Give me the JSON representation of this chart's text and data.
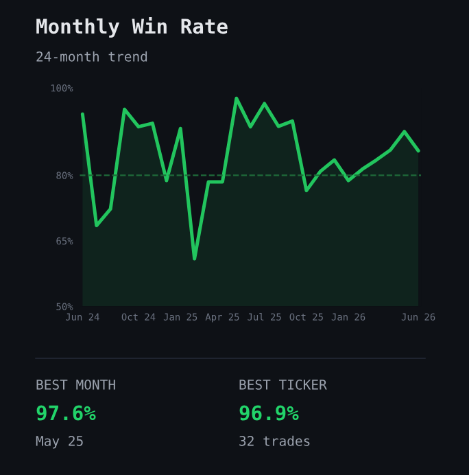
{
  "chart_data": {
    "type": "area",
    "title": "Monthly Win Rate",
    "subtitle": "24-month trend",
    "categories": [
      "Jun 24",
      null,
      null,
      null,
      "Oct 24",
      null,
      null,
      "Jan 25",
      null,
      null,
      "Apr 25",
      null,
      null,
      "Jul 25",
      null,
      null,
      "Oct 25",
      null,
      null,
      "Jan 26",
      null,
      null,
      null,
      null,
      "Jun 26"
    ],
    "series": [
      {
        "color": "#22c55e",
        "values": [
          94.0,
          68.5,
          72.3,
          95.1,
          91.1,
          91.9,
          78.8,
          90.7,
          60.9,
          78.5,
          78.5,
          97.6,
          91.1,
          96.4,
          91.2,
          92.4,
          76.5,
          80.9,
          83.5,
          78.8,
          81.4,
          83.5,
          85.8,
          90.0,
          85.6
        ]
      }
    ],
    "ylim": [
      50,
      100
    ],
    "yticks": [
      {
        "value": 50,
        "label": "50%"
      },
      {
        "value": 65,
        "label": "65%"
      },
      {
        "value": 80,
        "label": "80%"
      },
      {
        "value": 100,
        "label": "100%"
      }
    ],
    "ref_lines": [
      {
        "axis": "y",
        "value": 80,
        "color": "#1f6b3a",
        "line_style": "dashed"
      }
    ],
    "grid": false,
    "legend": false,
    "annotations": [
      "BEST MONTH",
      "97.6%",
      "May 25",
      "BEST TICKER",
      "96.9%",
      "32 trades"
    ]
  }
}
